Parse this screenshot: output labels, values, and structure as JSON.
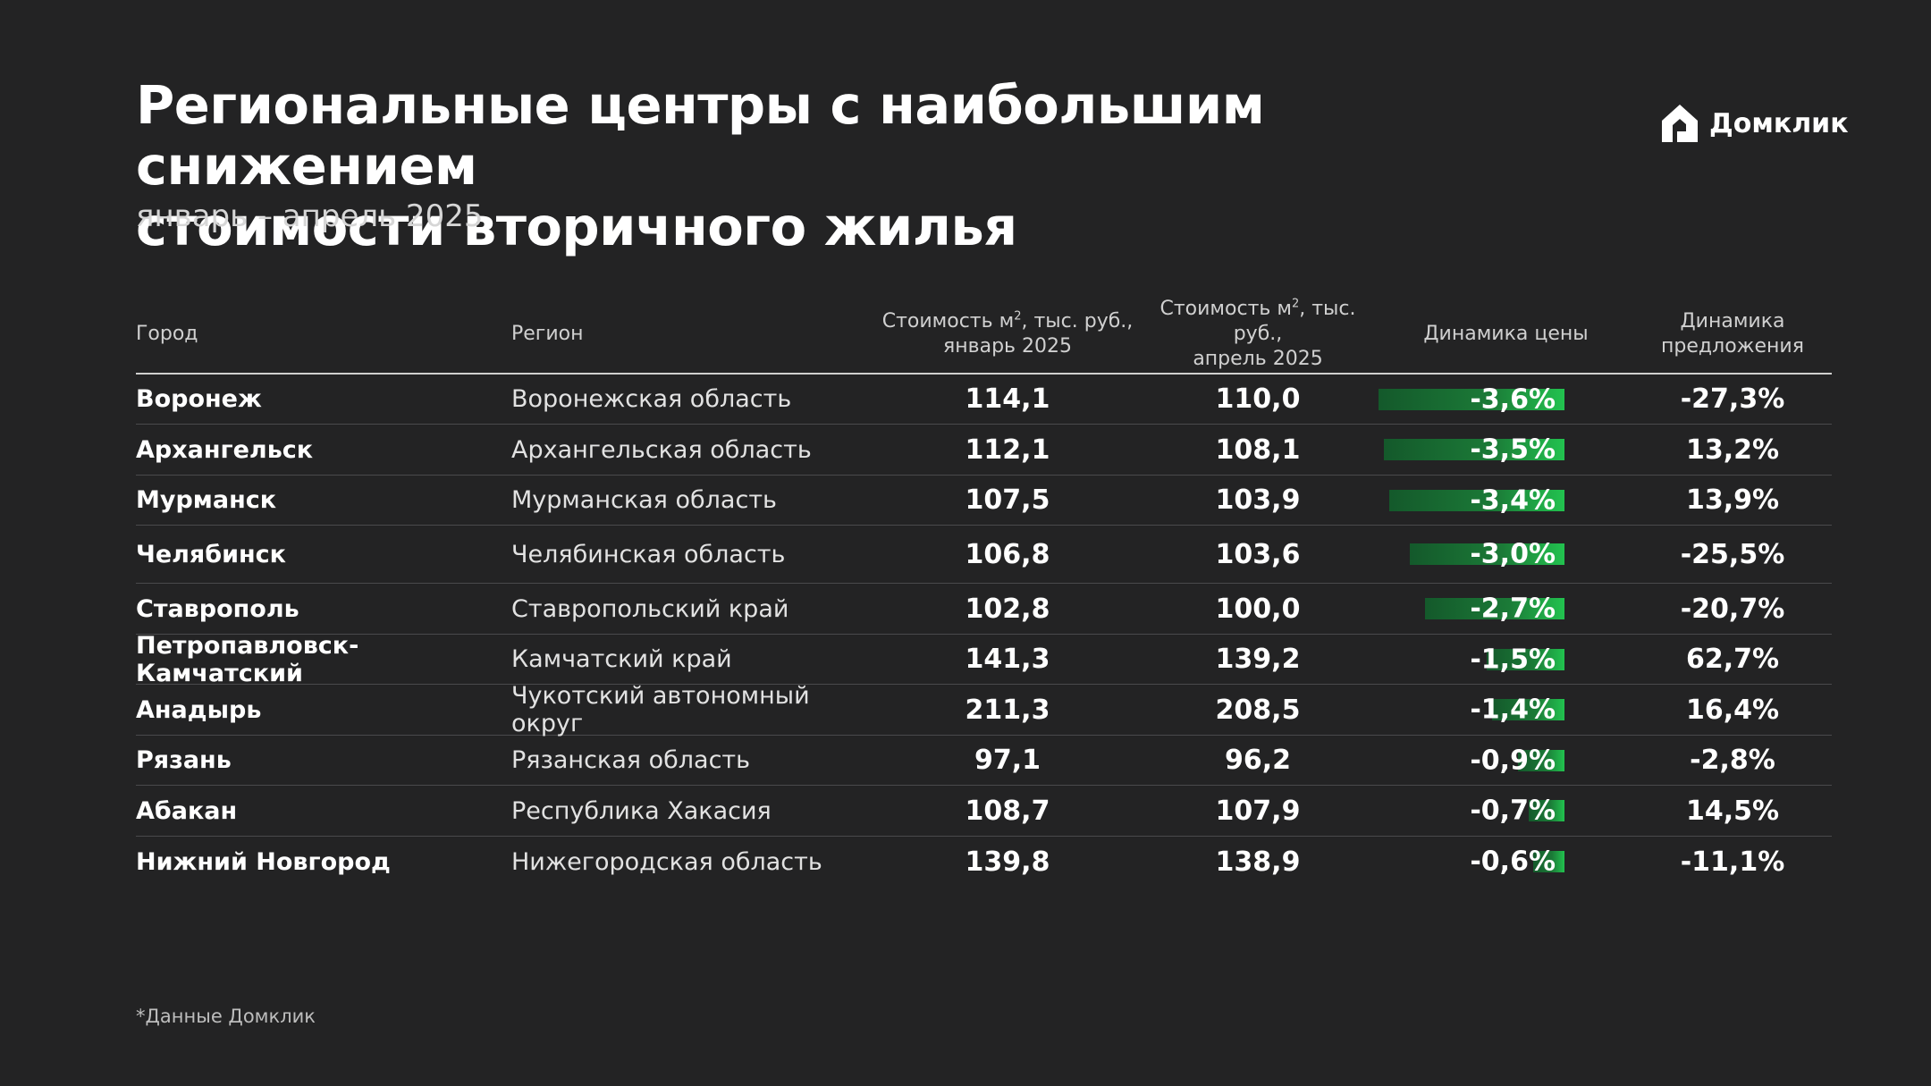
{
  "title_line1": "Региональные центры с наибольшим снижением",
  "title_line2": "стоимости вторичного жилья",
  "subtitle": "январь – апрель 2025",
  "logo_text": "Домклик",
  "footnote": "*Данные Домклик",
  "colors": {
    "background": "#232324",
    "bar_dark": "#14592b",
    "bar_light": "#22c24f",
    "text": "#ffffff"
  },
  "headers": {
    "city": "Город",
    "region": "Регион",
    "jan_a": "Стоимость м",
    "jan_sup": "2",
    "jan_b": ", тыс. руб.,",
    "jan_c": "январь 2025",
    "apr_a": "Стоимость м",
    "apr_sup": "2",
    "apr_b": ", тыс. руб.,",
    "apr_c": "апрель 2025",
    "dyn": "Динамика цены",
    "sup_a": "Динамика",
    "sup_b": "предложения"
  },
  "chart_data": {
    "type": "table",
    "title": "Региональные центры с наибольшим снижением стоимости вторичного жилья",
    "subtitle": "январь – апрель 2025",
    "columns": [
      "Город",
      "Регион",
      "Стоимость м2, тыс. руб., январь 2025",
      "Стоимость м2, тыс. руб., апрель 2025",
      "Динамика цены",
      "Динамика предложения"
    ],
    "rows": [
      {
        "city": "Воронеж",
        "region": "Воронежская область",
        "jan": "114,1",
        "apr": "110,0",
        "dyn": "-3,6%",
        "dyn_value": -3.6,
        "supply": "-27,3%"
      },
      {
        "city": "Архангельск",
        "region": "Архангельская область",
        "jan": "112,1",
        "apr": "108,1",
        "dyn": "-3,5%",
        "dyn_value": -3.5,
        "supply": "13,2%"
      },
      {
        "city": "Мурманск",
        "region": "Мурманская область",
        "jan": "107,5",
        "apr": "103,9",
        "dyn": "-3,4%",
        "dyn_value": -3.4,
        "supply": "13,9%"
      },
      {
        "city": "Челябинск",
        "region": "Челябинская область",
        "jan": "106,8",
        "apr": "103,6",
        "dyn": "-3,0%",
        "dyn_value": -3.0,
        "supply": "-25,5%"
      },
      {
        "city": "Ставрополь",
        "region": "Ставропольский край",
        "jan": "102,8",
        "apr": "100,0",
        "dyn": "-2,7%",
        "dyn_value": -2.7,
        "supply": "-20,7%"
      },
      {
        "city": "Петропавловск-Камчатский",
        "region": "Камчатский край",
        "jan": "141,3",
        "apr": "139,2",
        "dyn": "-1,5%",
        "dyn_value": -1.5,
        "supply": "62,7%"
      },
      {
        "city": "Анадырь",
        "region": "Чукотский автономный округ",
        "jan": "211,3",
        "apr": "208,5",
        "dyn": "-1,4%",
        "dyn_value": -1.4,
        "supply": "16,4%"
      },
      {
        "city": "Рязань",
        "region": "Рязанская область",
        "jan": "97,1",
        "apr": "96,2",
        "dyn": "-0,9%",
        "dyn_value": -0.9,
        "supply": "-2,8%"
      },
      {
        "city": "Абакан",
        "region": "Республика Хакасия",
        "jan": "108,7",
        "apr": "107,9",
        "dyn": "-0,7%",
        "dyn_value": -0.7,
        "supply": "14,5%"
      },
      {
        "city": "Нижний Новгород",
        "region": "Нижегородская область",
        "jan": "139,8",
        "apr": "138,9",
        "dyn": "-0,6%",
        "dyn_value": -0.6,
        "supply": "-11,1%"
      }
    ]
  }
}
